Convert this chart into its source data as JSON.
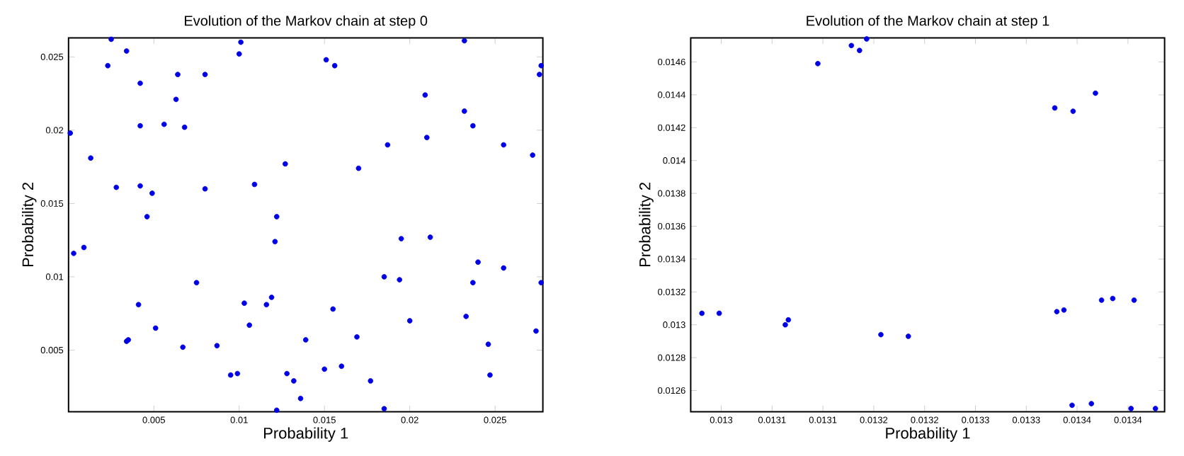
{
  "chart_data": [
    {
      "type": "scatter",
      "title": "Evolution of the Markov chain at step 0",
      "xlabel": "Probability 1",
      "ylabel": "Probability 2",
      "marker": "circle",
      "grid": false,
      "xlim": [
        0,
        0.0278
      ],
      "ylim": [
        0.0008,
        0.0263
      ],
      "xticks": [
        0.005,
        0.01,
        0.015,
        0.02,
        0.025
      ],
      "yticks": [
        0.005,
        0.01,
        0.015,
        0.02,
        0.025
      ],
      "series": [
        {
          "color": "#0000e6",
          "x": [
            0.0025,
            0.0101,
            0.01,
            0.0034,
            0.0023,
            0.0064,
            0.008,
            0.0042,
            0.0063,
            0.0151,
            0.0156,
            0.0001,
            0.0042,
            0.0056,
            0.0068,
            0.0013,
            0.0127,
            0.0028,
            0.0042,
            0.0049,
            0.008,
            0.0109,
            0.0046,
            0.0122,
            0.0121,
            0.0003,
            0.0009,
            0.0075,
            0.0041,
            0.0103,
            0.0116,
            0.0119,
            0.0106,
            0.0051,
            0.0034,
            0.0035,
            0.0067,
            0.0087,
            0.0139,
            0.0169,
            0.0155,
            0.0095,
            0.0099,
            0.0128,
            0.0132,
            0.0136,
            0.015,
            0.016,
            0.0122,
            0.0177,
            0.0185,
            0.0185,
            0.017,
            0.0187,
            0.0232,
            0.0209,
            0.0232,
            0.0237,
            0.021,
            0.0255,
            0.0272,
            0.0276,
            0.0277,
            0.0195,
            0.0212,
            0.024,
            0.0255,
            0.0237,
            0.0277,
            0.0194,
            0.02,
            0.0233,
            0.0274,
            0.0246,
            0.0247
          ],
          "values": [
            0.0262,
            0.026,
            0.0252,
            0.0254,
            0.0244,
            0.0238,
            0.0238,
            0.0232,
            0.0221,
            0.0248,
            0.0244,
            0.0198,
            0.0203,
            0.0204,
            0.0202,
            0.0181,
            0.0177,
            0.0161,
            0.0162,
            0.0157,
            0.016,
            0.0163,
            0.0141,
            0.0141,
            0.0124,
            0.0116,
            0.012,
            0.0096,
            0.0081,
            0.0082,
            0.0081,
            0.0086,
            0.0067,
            0.0065,
            0.0056,
            0.0057,
            0.0052,
            0.0053,
            0.0057,
            0.0059,
            0.0078,
            0.0033,
            0.0034,
            0.0034,
            0.0029,
            0.0017,
            0.0037,
            0.0039,
            0.0009,
            0.0029,
            0.001,
            0.01,
            0.0174,
            0.019,
            0.0261,
            0.0224,
            0.0213,
            0.0203,
            0.0195,
            0.019,
            0.0183,
            0.0238,
            0.0244,
            0.0126,
            0.0127,
            0.011,
            0.0106,
            0.0096,
            0.0096,
            0.0098,
            0.007,
            0.0073,
            0.0063,
            0.0054,
            0.0033
          ]
        }
      ]
    },
    {
      "type": "scatter",
      "title": "Evolution of the Markov chain at step 1",
      "xlabel": "Probability 1",
      "ylabel": "Probability 2",
      "marker": "circle",
      "grid": false,
      "xlim": [
        0.01297,
        0.013436
      ],
      "ylim": [
        0.012471,
        0.014747
      ],
      "xticks": [
        {
          "value": 0.013,
          "label": "0.013"
        },
        {
          "value": 0.01305,
          "label": "0.0131"
        },
        {
          "value": 0.0131,
          "label": "0.0131"
        },
        {
          "value": 0.01315,
          "label": "0.0132"
        },
        {
          "value": 0.0132,
          "label": "0.0132"
        },
        {
          "value": 0.01325,
          "label": "0.0133"
        },
        {
          "value": 0.0133,
          "label": "0.0133"
        },
        {
          "value": 0.01335,
          "label": "0.0134"
        },
        {
          "value": 0.0134,
          "label": "0.0134"
        }
      ],
      "yticks": [
        0.0126,
        0.0128,
        0.013,
        0.0132,
        0.0134,
        0.0136,
        0.0138,
        0.014,
        0.0142,
        0.0144,
        0.0146
      ],
      "series": [
        {
          "color": "#0000e6",
          "x": [
            0.012981,
            0.012998,
            0.013063,
            0.013066,
            0.013095,
            0.013128,
            0.013136,
            0.013143,
            0.013157,
            0.013184,
            0.013328,
            0.013346,
            0.013368,
            0.01333,
            0.013337,
            0.013374,
            0.013385,
            0.013406,
            0.013345,
            0.013364,
            0.013403,
            0.013427
          ],
          "values": [
            0.01307,
            0.01307,
            0.013,
            0.01303,
            0.01459,
            0.0147,
            0.01467,
            0.01474,
            0.01294,
            0.01293,
            0.01432,
            0.0143,
            0.01441,
            0.01308,
            0.01309,
            0.01315,
            0.01316,
            0.01315,
            0.01251,
            0.01252,
            0.01249,
            0.01249
          ]
        }
      ]
    }
  ]
}
